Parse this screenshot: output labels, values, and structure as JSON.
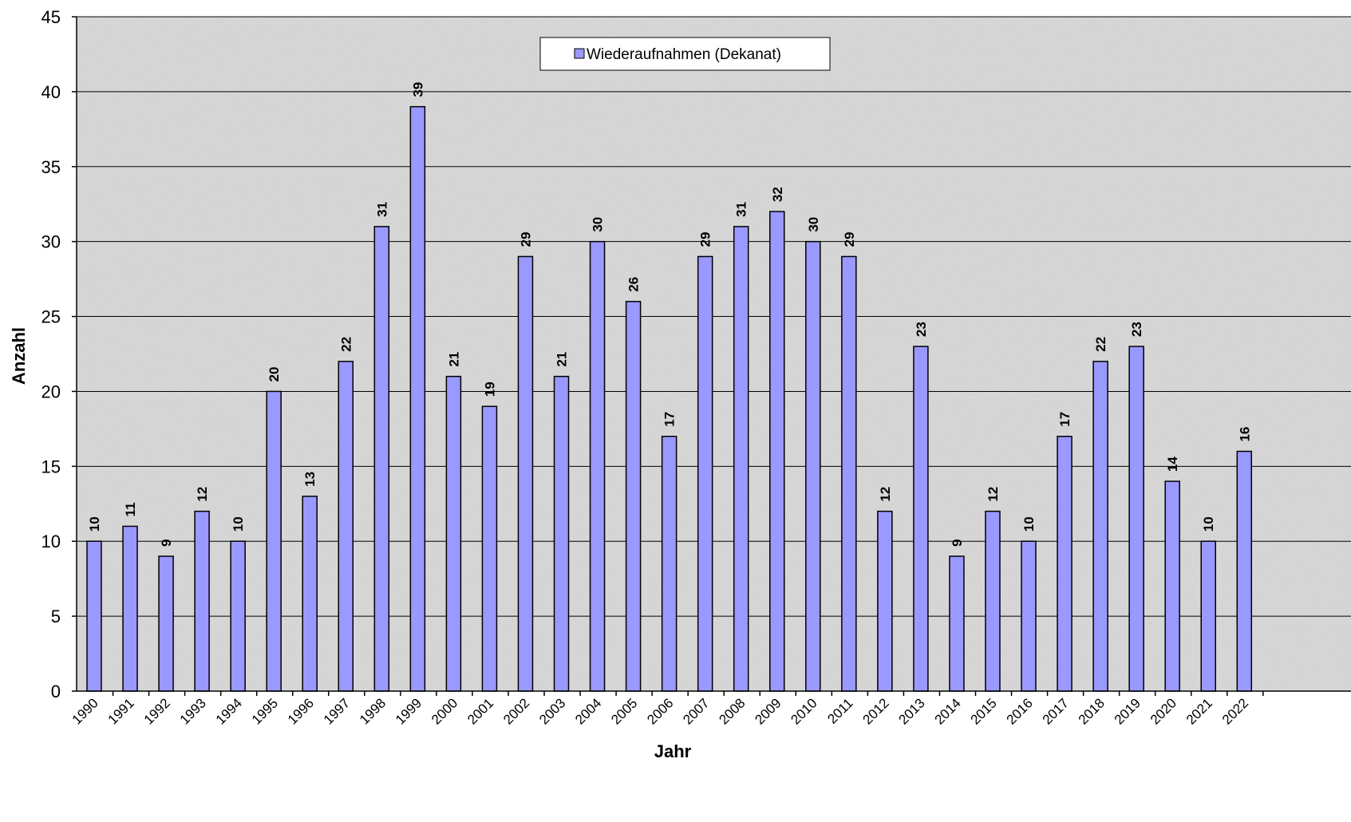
{
  "chart_data": {
    "type": "bar",
    "xlabel": "Jahr",
    "ylabel": "Anzahl",
    "ylim": [
      0,
      45
    ],
    "ytick_step": 5,
    "grid": true,
    "legend_position": "top-center",
    "categories": [
      "1990",
      "1991",
      "1992",
      "1993",
      "1994",
      "1995",
      "1996",
      "1997",
      "1998",
      "1999",
      "2000",
      "2001",
      "2002",
      "2003",
      "2004",
      "2005",
      "2006",
      "2007",
      "2008",
      "2009",
      "2010",
      "2011",
      "2012",
      "2013",
      "2014",
      "2015",
      "2016",
      "2017",
      "2018",
      "2019",
      "2020",
      "2021",
      "2022"
    ],
    "series": [
      {
        "name": "Wiederaufnahmen (Dekanat)",
        "color": "#9999ff",
        "values": [
          10,
          11,
          9,
          12,
          10,
          20,
          13,
          22,
          31,
          39,
          21,
          19,
          29,
          21,
          30,
          26,
          17,
          29,
          31,
          32,
          30,
          29,
          12,
          23,
          9,
          12,
          10,
          17,
          22,
          23,
          14,
          10,
          16
        ]
      }
    ]
  }
}
